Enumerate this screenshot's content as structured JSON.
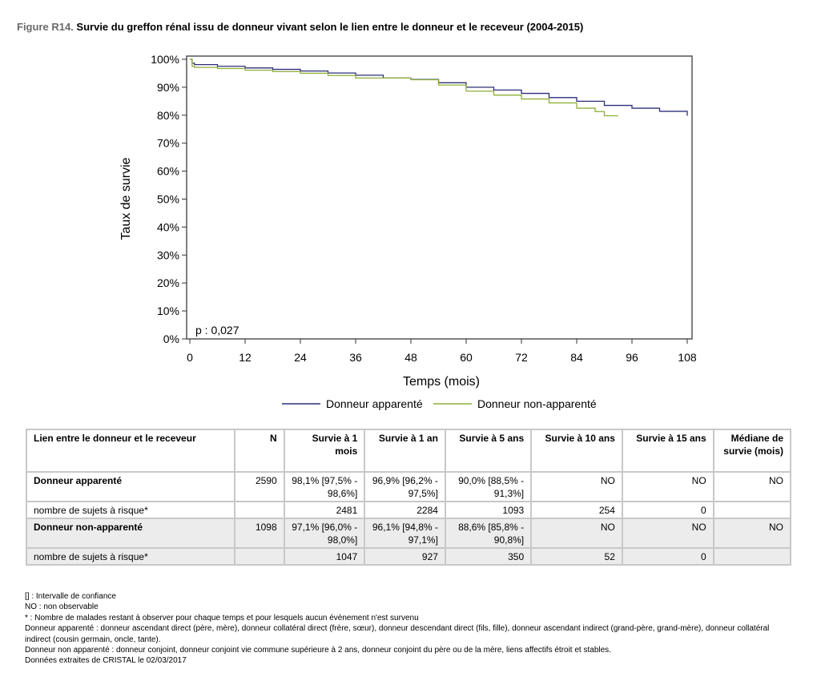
{
  "figure": {
    "number": "Figure R14.",
    "title": "Survie du greffon rénal issu de donneur vivant selon le lien entre le donneur et le receveur (2004-2015)"
  },
  "chart_data": {
    "type": "line",
    "subtype": "kaplan-meier step curve",
    "xlabel": "Temps (mois)",
    "ylabel": "Taux de survie",
    "xlim": [
      0,
      108
    ],
    "ylim": [
      0,
      100
    ],
    "x_ticks": [
      0,
      12,
      24,
      36,
      48,
      60,
      72,
      84,
      96,
      108
    ],
    "y_ticks": [
      0,
      10,
      20,
      30,
      40,
      50,
      60,
      70,
      80,
      90,
      100
    ],
    "y_tick_labels": [
      "0%",
      "10%",
      "20%",
      "30%",
      "40%",
      "50%",
      "60%",
      "70%",
      "80%",
      "90%",
      "100%"
    ],
    "grid": false,
    "legend_position": "bottom",
    "annotation": "p : 0,027",
    "series": [
      {
        "name": "Donneur apparenté",
        "color": "#2e2e7a",
        "x": [
          0,
          0.5,
          1,
          6,
          12,
          18,
          24,
          30,
          36,
          42,
          48,
          54,
          60,
          66,
          72,
          78,
          84,
          90,
          96,
          102,
          108
        ],
        "y": [
          100,
          98.6,
          98.1,
          97.5,
          96.9,
          96.4,
          95.8,
          95.1,
          94.3,
          93.3,
          92.8,
          91.6,
          90.0,
          89.0,
          87.8,
          86.3,
          85.0,
          83.5,
          82.5,
          81.4,
          79.8
        ]
      },
      {
        "name": "Donneur non-apparenté",
        "color": "#8fae3a",
        "x": [
          0,
          0.5,
          1,
          6,
          12,
          18,
          24,
          30,
          36,
          42,
          48,
          54,
          60,
          66,
          72,
          78,
          84,
          88,
          90,
          93
        ],
        "y": [
          100,
          97.5,
          97.1,
          96.7,
          96.1,
          95.6,
          95.0,
          94.2,
          93.3,
          93.3,
          92.7,
          90.8,
          88.6,
          87.2,
          85.8,
          84.4,
          82.5,
          81.3,
          79.8,
          79.8
        ]
      }
    ]
  },
  "table": {
    "headers": [
      "Lien entre le donneur et le receveur",
      "N",
      "Survie à 1 mois",
      "Survie à 1 an",
      "Survie à 5 ans",
      "Survie à 10 ans",
      "Survie à 15 ans",
      "Médiane de survie (mois)"
    ],
    "rows": [
      {
        "label": "Donneur apparenté",
        "n": "2590",
        "s1m": "98,1% [97,5% - 98,6%]",
        "s1a": "96,9% [96,2% - 97,5%]",
        "s5a": "90,0% [88,5% - 91,3%]",
        "s10a": "NO",
        "s15a": "NO",
        "median": "NO",
        "risk_label": "nombre de sujets à risque*",
        "risk": [
          "2481",
          "2284",
          "1093",
          "254",
          "0",
          ""
        ]
      },
      {
        "label": "Donneur non-apparenté",
        "n": "1098",
        "s1m": "97,1% [96,0% - 98,0%]",
        "s1a": "96,1% [94,8% - 97,1%]",
        "s5a": "88,6% [85,8% - 90,8%]",
        "s10a": "NO",
        "s15a": "NO",
        "median": "NO",
        "risk_label": "nombre de sujets à risque*",
        "risk": [
          "1047",
          "927",
          "350",
          "52",
          "0",
          ""
        ]
      }
    ]
  },
  "notes": [
    "[] : Intervalle de confiance",
    "NO : non observable",
    "* : Nombre de malades restant à observer pour chaque temps et pour lesquels aucun évènement n'est survenu",
    "Donneur apparenté : donneur ascendant direct (père, mère), donneur collatéral direct (frère, sœur), donneur descendant direct (fils, fille), donneur ascendant indirect (grand-père, grand-mère), donneur collatéral indirect (cousin germain, oncle, tante).",
    "Donneur non apparenté : donneur conjoint, donneur conjoint vie commune supérieure à 2 ans, donneur conjoint du père ou de la mère, liens affectifs étroit et stables.",
    "Données extraites de CRISTAL le 02/03/2017"
  ]
}
